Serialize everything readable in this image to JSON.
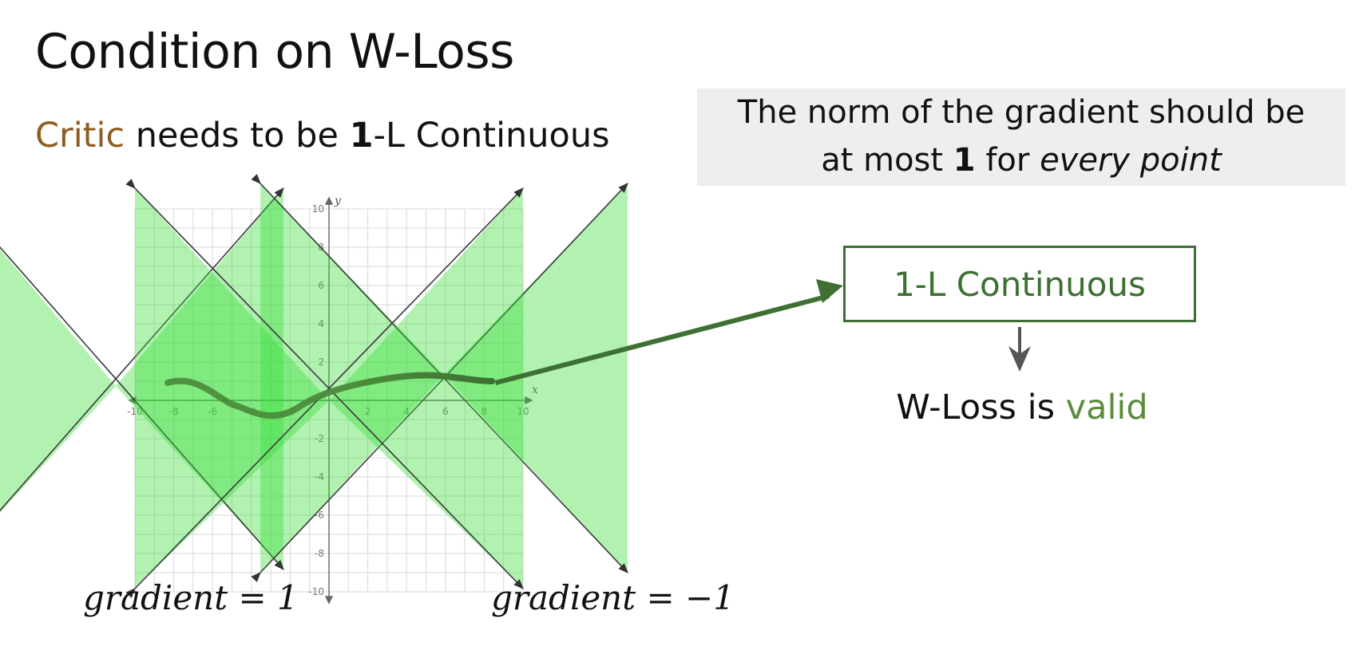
{
  "slide": {
    "title": "Condition on W-Loss",
    "subtitle": {
      "critic": "Critic",
      "text1": " needs to be ",
      "bold": "1",
      "text2": "-L Continuous"
    }
  },
  "note": {
    "line1": "The norm of the gradient should be",
    "line2_pre": "at most ",
    "line2_bold": "1",
    "line2_mid": " for ",
    "line2_italic": "every point"
  },
  "flow": {
    "box_label": "1-L Continuous",
    "result_pre": "W-Loss is ",
    "result_valid": "valid"
  },
  "graph": {
    "x_axis_label": "x",
    "y_axis_label": "y",
    "x_ticks": [
      -10,
      -8,
      -6,
      -4,
      -2,
      2,
      4,
      6,
      8,
      10
    ],
    "y_ticks": [
      10,
      8,
      6,
      4,
      2,
      -2,
      -4,
      -6,
      -8,
      -10
    ],
    "gradient_left_label": "gradient = 1",
    "gradient_right_label": "gradient = −1"
  },
  "colors": {
    "title_text": "#111111",
    "critic": "#8f5b21",
    "box_green": "#3d7032",
    "valid_green": "#5a8c3a",
    "cone_fill": "#33dd33",
    "curve": "#4a8a3a",
    "arrow_down": "#555555"
  }
}
